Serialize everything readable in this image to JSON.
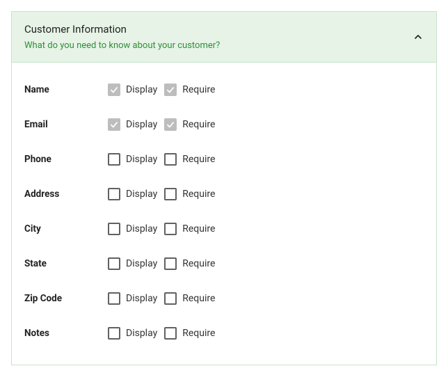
{
  "panel": {
    "title": "Customer Information",
    "subtitle": "What do you need to know about your customer?",
    "expanded": true
  },
  "columns": {
    "display": "Display",
    "require": "Require"
  },
  "fields": [
    {
      "key": "name",
      "label": "Name",
      "display": {
        "checked": true,
        "disabled": true
      },
      "require": {
        "checked": true,
        "disabled": true
      }
    },
    {
      "key": "email",
      "label": "Email",
      "display": {
        "checked": true,
        "disabled": true
      },
      "require": {
        "checked": true,
        "disabled": true
      }
    },
    {
      "key": "phone",
      "label": "Phone",
      "display": {
        "checked": false,
        "disabled": false
      },
      "require": {
        "checked": false,
        "disabled": false
      }
    },
    {
      "key": "address",
      "label": "Address",
      "display": {
        "checked": false,
        "disabled": false
      },
      "require": {
        "checked": false,
        "disabled": false
      }
    },
    {
      "key": "city",
      "label": "City",
      "display": {
        "checked": false,
        "disabled": false
      },
      "require": {
        "checked": false,
        "disabled": false
      }
    },
    {
      "key": "state",
      "label": "State",
      "display": {
        "checked": false,
        "disabled": false
      },
      "require": {
        "checked": false,
        "disabled": false
      }
    },
    {
      "key": "zip",
      "label": "Zip Code",
      "display": {
        "checked": false,
        "disabled": false
      },
      "require": {
        "checked": false,
        "disabled": false
      }
    },
    {
      "key": "notes",
      "label": "Notes",
      "display": {
        "checked": false,
        "disabled": false
      },
      "require": {
        "checked": false,
        "disabled": false
      }
    }
  ],
  "colors": {
    "header_bg": "#e6f3e6",
    "border": "#c7e3c9",
    "subtitle": "#2f8f3a",
    "checkbox_border": "#616161",
    "checkbox_disabled": "#bdbdbd"
  }
}
